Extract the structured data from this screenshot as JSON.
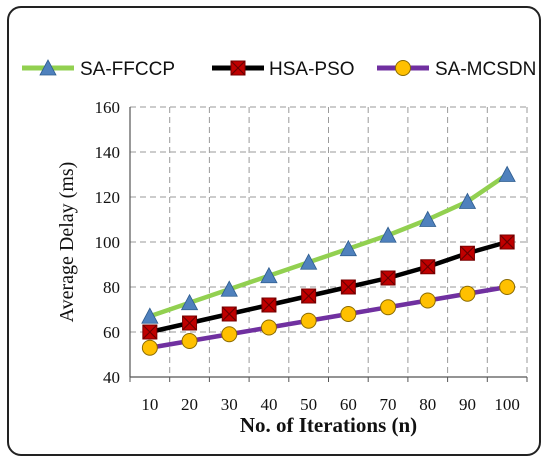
{
  "chart_data": {
    "type": "line",
    "title": "",
    "xlabel": "No. of Iterations (n)",
    "ylabel": "Average Delay (ms)",
    "x": [
      10,
      20,
      30,
      40,
      50,
      60,
      70,
      80,
      90,
      100
    ],
    "ylim": [
      40,
      160
    ],
    "yticks": [
      40,
      60,
      80,
      100,
      120,
      140,
      160
    ],
    "grid": true,
    "legend_position": "top",
    "series": [
      {
        "name": "SA-FFCCP",
        "values": [
          67,
          73,
          79,
          85,
          91,
          97,
          103,
          110,
          118,
          130
        ],
        "line_color": "#92d050",
        "marker": "triangle",
        "marker_color": "#4f81bd"
      },
      {
        "name": "HSA-PSO",
        "values": [
          60,
          64,
          68,
          72,
          76,
          80,
          84,
          89,
          95,
          100
        ],
        "line_color": "#000000",
        "marker": "square",
        "marker_color": "#c00000"
      },
      {
        "name": "SA-MCSDN",
        "values": [
          53,
          56,
          59,
          62,
          65,
          68,
          71,
          74,
          77,
          80
        ],
        "line_color": "#7030a0",
        "marker": "circle",
        "marker_color": "#ffc000"
      }
    ]
  }
}
